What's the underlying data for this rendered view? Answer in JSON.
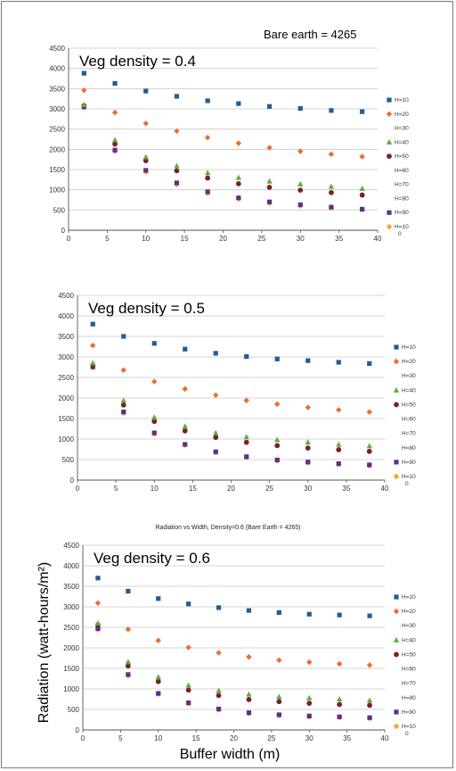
{
  "page": {
    "corner_note": "Bare earth = 4265",
    "ylabel": "Radiation (watt-hours/m²)",
    "xlabel": "Buffer width (m)"
  },
  "colors": {
    "H=10": "#1f5d9a",
    "H=20": "#f06b2a",
    "H=30": "#a0a0a0",
    "H=40": "#5fae3a",
    "H=50": "#7b1f2e",
    "H=60": "#2fa2c8",
    "H=70": "#e8a35a",
    "H=80": "#9ab0d8",
    "H=90": "#5d2f8a",
    "H=100": "#f3a81f"
  },
  "chart_data": [
    {
      "type": "scatter",
      "title": "",
      "annotation": "Veg density = 0.4",
      "xlim": [
        0,
        40
      ],
      "ylim": [
        0,
        4500
      ],
      "xticks": [
        "0",
        "5",
        "10",
        "15",
        "20",
        "25",
        "30",
        "35",
        "40"
      ],
      "yticks": [
        "0",
        "500",
        "1000",
        "1500",
        "2000",
        "2500",
        "3000",
        "3500",
        "4000",
        "4500"
      ],
      "x": [
        2,
        6,
        10,
        14,
        18,
        22,
        26,
        30,
        34,
        38
      ],
      "legend": [
        "H=10",
        "H=20",
        "H=30",
        "H=40",
        "H=50",
        "H=60",
        "H=70",
        "H=80",
        "H=90",
        "H=10 0"
      ],
      "series": [
        {
          "name": "H=10",
          "marker": "square",
          "values": [
            3880,
            3630,
            3440,
            3310,
            3200,
            3130,
            3060,
            3010,
            2960,
            2930
          ]
        },
        {
          "name": "H=20",
          "marker": "diamond",
          "values": [
            3460,
            2910,
            2640,
            2450,
            2290,
            2150,
            2040,
            1950,
            1880,
            1820
          ]
        },
        {
          "name": "H=40",
          "marker": "triangle",
          "values": [
            3100,
            2230,
            1810,
            1590,
            1420,
            1300,
            1210,
            1140,
            1080,
            1030
          ]
        },
        {
          "name": "H=50",
          "marker": "circle",
          "values": [
            3080,
            2130,
            1720,
            1470,
            1290,
            1150,
            1060,
            990,
            930,
            870
          ]
        },
        {
          "name": "H=90",
          "marker": "square",
          "values": [
            3050,
            1980,
            1480,
            1170,
            950,
            800,
            700,
            630,
            570,
            520
          ]
        },
        {
          "name": "H=100",
          "marker": "diamond",
          "values": [
            3030,
            1950,
            1440,
            1130,
            910,
            770,
            670,
            600,
            550,
            500
          ]
        }
      ]
    },
    {
      "type": "scatter",
      "title": "",
      "annotation": "Veg density = 0.5",
      "xlim": [
        0,
        40
      ],
      "ylim": [
        0,
        4500
      ],
      "xticks": [
        "0",
        "5",
        "10",
        "15",
        "20",
        "25",
        "30",
        "35",
        "40"
      ],
      "yticks": [
        "0",
        "500",
        "1000",
        "1500",
        "2000",
        "2500",
        "3000",
        "3500",
        "4000",
        "4500"
      ],
      "x": [
        2,
        6,
        10,
        14,
        18,
        22,
        26,
        30,
        34,
        38
      ],
      "legend": [
        "H=10",
        "H=20",
        "H=30",
        "H=40",
        "H=50",
        "H=60",
        "H=70",
        "H=80",
        "H=90",
        "H=10 0"
      ],
      "series": [
        {
          "name": "H=10",
          "marker": "square",
          "values": [
            3800,
            3500,
            3330,
            3190,
            3090,
            3010,
            2950,
            2910,
            2870,
            2840
          ]
        },
        {
          "name": "H=20",
          "marker": "diamond",
          "values": [
            3280,
            2680,
            2400,
            2220,
            2070,
            1940,
            1850,
            1770,
            1710,
            1660
          ]
        },
        {
          "name": "H=40",
          "marker": "triangle",
          "values": [
            2850,
            1940,
            1530,
            1310,
            1150,
            1050,
            980,
            920,
            870,
            830
          ]
        },
        {
          "name": "H=50",
          "marker": "circle",
          "values": [
            2800,
            1830,
            1430,
            1200,
            1040,
            920,
            840,
            780,
            740,
            700
          ]
        },
        {
          "name": "H=90",
          "marker": "square",
          "values": [
            2760,
            1660,
            1150,
            870,
            690,
            570,
            490,
            440,
            400,
            370
          ]
        },
        {
          "name": "H=100",
          "marker": "diamond",
          "values": [
            2740,
            1630,
            1120,
            850,
            670,
            550,
            470,
            420,
            380,
            350
          ]
        }
      ]
    },
    {
      "type": "scatter",
      "title": "Radiation vs Width, Density=0.6 (Bare Earth = 4265)",
      "annotation": "Veg density = 0.6",
      "xlim": [
        0,
        40
      ],
      "ylim": [
        0,
        4500
      ],
      "xticks": [
        "0",
        "5",
        "10",
        "15",
        "20",
        "25",
        "30",
        "35",
        "40"
      ],
      "yticks": [
        "0",
        "500",
        "1000",
        "1500",
        "2000",
        "2500",
        "3000",
        "3500",
        "4000",
        "4500"
      ],
      "x": [
        2,
        6,
        10,
        14,
        18,
        22,
        26,
        30,
        34,
        38
      ],
      "legend": [
        "H=10",
        "H=20",
        "H=30",
        "H=40",
        "H=50",
        "H=60",
        "H=70",
        "H=80",
        "H=90",
        "H=10 0"
      ],
      "series": [
        {
          "name": "H=10",
          "marker": "square",
          "values": [
            3700,
            3380,
            3200,
            3070,
            2980,
            2910,
            2860,
            2820,
            2800,
            2780
          ]
        },
        {
          "name": "H=20",
          "marker": "diamond",
          "values": [
            3090,
            2450,
            2180,
            2010,
            1880,
            1780,
            1700,
            1650,
            1610,
            1580
          ]
        },
        {
          "name": "H=40",
          "marker": "triangle",
          "values": [
            2600,
            1660,
            1290,
            1090,
            960,
            870,
            810,
            780,
            750,
            720
          ]
        },
        {
          "name": "H=50",
          "marker": "circle",
          "values": [
            2560,
            1560,
            1180,
            970,
            840,
            740,
            690,
            650,
            620,
            600
          ]
        },
        {
          "name": "H=90",
          "marker": "square",
          "values": [
            2470,
            1350,
            890,
            660,
            510,
            420,
            370,
            340,
            320,
            300
          ]
        },
        {
          "name": "H=100",
          "marker": "diamond",
          "values": [
            2440,
            1320,
            870,
            640,
            490,
            400,
            350,
            320,
            300,
            280
          ]
        }
      ]
    }
  ]
}
